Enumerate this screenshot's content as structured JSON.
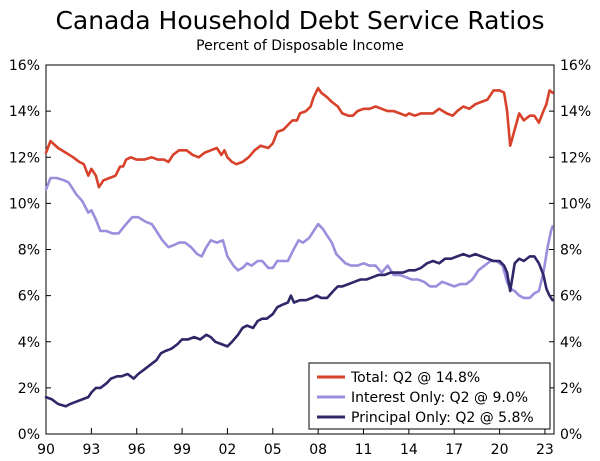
{
  "chart_data": {
    "type": "line",
    "title": "Canada Household Debt Service Ratios",
    "subtitle": "Percent of Disposable Income",
    "xlabel": "",
    "ylabel": "",
    "xlim": [
      1990,
      2023.6
    ],
    "ylim": [
      0,
      16
    ],
    "x_ticks": [
      1990,
      1993,
      1996,
      1999,
      2002,
      2005,
      2008,
      2011,
      2014,
      2017,
      2020,
      2023
    ],
    "x_tick_labels": [
      "90",
      "93",
      "96",
      "99",
      "02",
      "05",
      "08",
      "11",
      "14",
      "17",
      "20",
      "23"
    ],
    "y_ticks": [
      0,
      2,
      4,
      6,
      8,
      10,
      12,
      14,
      16
    ],
    "y_tick_labels": [
      "0%",
      "2%",
      "4%",
      "6%",
      "8%",
      "10%",
      "12%",
      "14%",
      "16%"
    ],
    "grid": false,
    "legend_position": "bottom-right",
    "series": [
      {
        "name": "Total: Q2 @ 14.8%",
        "color": "#d8412a",
        "points": [
          [
            1990.0,
            12.2
          ],
          [
            1990.3,
            12.7
          ],
          [
            1990.8,
            12.4
          ],
          [
            1991.3,
            12.2
          ],
          [
            1991.8,
            12.0
          ],
          [
            1992.2,
            11.8
          ],
          [
            1992.5,
            11.7
          ],
          [
            1992.8,
            11.2
          ],
          [
            1993.0,
            11.5
          ],
          [
            1993.3,
            11.2
          ],
          [
            1993.5,
            10.7
          ],
          [
            1993.8,
            11.0
          ],
          [
            1994.2,
            11.1
          ],
          [
            1994.6,
            11.2
          ],
          [
            1994.9,
            11.6
          ],
          [
            1995.1,
            11.6
          ],
          [
            1995.3,
            11.9
          ],
          [
            1995.6,
            12.0
          ],
          [
            1996.0,
            11.9
          ],
          [
            1996.5,
            11.9
          ],
          [
            1997.0,
            12.0
          ],
          [
            1997.4,
            11.9
          ],
          [
            1997.8,
            11.9
          ],
          [
            1998.1,
            11.8
          ],
          [
            1998.4,
            12.1
          ],
          [
            1998.8,
            12.3
          ],
          [
            1999.3,
            12.3
          ],
          [
            1999.7,
            12.1
          ],
          [
            2000.1,
            12.0
          ],
          [
            2000.5,
            12.2
          ],
          [
            2000.9,
            12.3
          ],
          [
            2001.3,
            12.4
          ],
          [
            2001.6,
            12.1
          ],
          [
            2001.8,
            12.3
          ],
          [
            2002.0,
            12.0
          ],
          [
            2002.3,
            11.8
          ],
          [
            2002.6,
            11.7
          ],
          [
            2003.0,
            11.8
          ],
          [
            2003.4,
            12.0
          ],
          [
            2003.8,
            12.3
          ],
          [
            2004.2,
            12.5
          ],
          [
            2004.7,
            12.4
          ],
          [
            2005.0,
            12.6
          ],
          [
            2005.3,
            13.1
          ],
          [
            2005.7,
            13.2
          ],
          [
            2006.0,
            13.4
          ],
          [
            2006.3,
            13.6
          ],
          [
            2006.6,
            13.6
          ],
          [
            2006.8,
            13.9
          ],
          [
            2007.2,
            14.0
          ],
          [
            2007.5,
            14.2
          ],
          [
            2007.7,
            14.6
          ],
          [
            2008.0,
            15.0
          ],
          [
            2008.2,
            14.8
          ],
          [
            2008.6,
            14.6
          ],
          [
            2008.9,
            14.4
          ],
          [
            2009.3,
            14.2
          ],
          [
            2009.6,
            13.9
          ],
          [
            2010.0,
            13.8
          ],
          [
            2010.3,
            13.8
          ],
          [
            2010.6,
            14.0
          ],
          [
            2011.0,
            14.1
          ],
          [
            2011.4,
            14.1
          ],
          [
            2011.8,
            14.2
          ],
          [
            2012.2,
            14.1
          ],
          [
            2012.6,
            14.0
          ],
          [
            2013.0,
            14.0
          ],
          [
            2013.4,
            13.9
          ],
          [
            2013.8,
            13.8
          ],
          [
            2014.0,
            13.9
          ],
          [
            2014.4,
            13.8
          ],
          [
            2014.8,
            13.9
          ],
          [
            2015.2,
            13.9
          ],
          [
            2015.6,
            13.9
          ],
          [
            2016.0,
            14.1
          ],
          [
            2016.5,
            13.9
          ],
          [
            2016.9,
            13.8
          ],
          [
            2017.2,
            14.0
          ],
          [
            2017.6,
            14.2
          ],
          [
            2018.0,
            14.1
          ],
          [
            2018.4,
            14.3
          ],
          [
            2018.8,
            14.4
          ],
          [
            2019.2,
            14.5
          ],
          [
            2019.6,
            14.9
          ],
          [
            2020.0,
            14.9
          ],
          [
            2020.3,
            14.8
          ],
          [
            2020.5,
            14.0
          ],
          [
            2020.7,
            12.5
          ],
          [
            2021.0,
            13.2
          ],
          [
            2021.3,
            13.9
          ],
          [
            2021.6,
            13.6
          ],
          [
            2022.0,
            13.8
          ],
          [
            2022.3,
            13.8
          ],
          [
            2022.6,
            13.5
          ],
          [
            2022.9,
            14.0
          ],
          [
            2023.1,
            14.3
          ],
          [
            2023.3,
            14.9
          ],
          [
            2023.5,
            14.8
          ]
        ]
      },
      {
        "name": "Interest Only: Q2 @ 9.0%",
        "color": "#9b8edc",
        "points": [
          [
            1990.0,
            10.6
          ],
          [
            1990.3,
            11.1
          ],
          [
            1990.7,
            11.1
          ],
          [
            1991.2,
            11.0
          ],
          [
            1991.5,
            10.9
          ],
          [
            1992.0,
            10.4
          ],
          [
            1992.4,
            10.1
          ],
          [
            1992.8,
            9.6
          ],
          [
            1993.0,
            9.7
          ],
          [
            1993.3,
            9.3
          ],
          [
            1993.6,
            8.8
          ],
          [
            1994.0,
            8.8
          ],
          [
            1994.4,
            8.7
          ],
          [
            1994.8,
            8.7
          ],
          [
            1995.3,
            9.1
          ],
          [
            1995.7,
            9.4
          ],
          [
            1996.1,
            9.4
          ],
          [
            1996.6,
            9.2
          ],
          [
            1997.0,
            9.1
          ],
          [
            1997.3,
            8.8
          ],
          [
            1997.7,
            8.4
          ],
          [
            1998.1,
            8.1
          ],
          [
            1998.5,
            8.2
          ],
          [
            1998.8,
            8.3
          ],
          [
            1999.2,
            8.3
          ],
          [
            1999.6,
            8.1
          ],
          [
            2000.0,
            7.8
          ],
          [
            2000.3,
            7.7
          ],
          [
            2000.6,
            8.1
          ],
          [
            2000.9,
            8.4
          ],
          [
            2001.3,
            8.3
          ],
          [
            2001.7,
            8.4
          ],
          [
            2002.0,
            7.7
          ],
          [
            2002.4,
            7.3
          ],
          [
            2002.7,
            7.1
          ],
          [
            2003.0,
            7.2
          ],
          [
            2003.3,
            7.4
          ],
          [
            2003.6,
            7.3
          ],
          [
            2004.0,
            7.5
          ],
          [
            2004.3,
            7.5
          ],
          [
            2004.7,
            7.2
          ],
          [
            2005.0,
            7.2
          ],
          [
            2005.3,
            7.5
          ],
          [
            2005.6,
            7.5
          ],
          [
            2006.0,
            7.5
          ],
          [
            2006.3,
            7.9
          ],
          [
            2006.7,
            8.4
          ],
          [
            2007.0,
            8.3
          ],
          [
            2007.4,
            8.5
          ],
          [
            2007.8,
            8.9
          ],
          [
            2008.0,
            9.1
          ],
          [
            2008.3,
            8.9
          ],
          [
            2008.6,
            8.6
          ],
          [
            2008.9,
            8.3
          ],
          [
            2009.2,
            7.8
          ],
          [
            2009.5,
            7.6
          ],
          [
            2009.8,
            7.4
          ],
          [
            2010.2,
            7.3
          ],
          [
            2010.6,
            7.3
          ],
          [
            2011.0,
            7.4
          ],
          [
            2011.4,
            7.3
          ],
          [
            2011.8,
            7.3
          ],
          [
            2012.2,
            7.0
          ],
          [
            2012.6,
            7.3
          ],
          [
            2013.0,
            6.9
          ],
          [
            2013.4,
            6.9
          ],
          [
            2013.8,
            6.8
          ],
          [
            2014.2,
            6.7
          ],
          [
            2014.6,
            6.7
          ],
          [
            2015.0,
            6.6
          ],
          [
            2015.4,
            6.4
          ],
          [
            2015.8,
            6.4
          ],
          [
            2016.2,
            6.6
          ],
          [
            2016.6,
            6.5
          ],
          [
            2017.0,
            6.4
          ],
          [
            2017.4,
            6.5
          ],
          [
            2017.8,
            6.5
          ],
          [
            2018.2,
            6.7
          ],
          [
            2018.6,
            7.1
          ],
          [
            2019.0,
            7.3
          ],
          [
            2019.4,
            7.5
          ],
          [
            2019.8,
            7.5
          ],
          [
            2020.2,
            7.3
          ],
          [
            2020.5,
            6.6
          ],
          [
            2020.7,
            6.3
          ],
          [
            2021.0,
            6.2
          ],
          [
            2021.3,
            6.0
          ],
          [
            2021.6,
            5.9
          ],
          [
            2022.0,
            5.9
          ],
          [
            2022.3,
            6.1
          ],
          [
            2022.6,
            6.2
          ],
          [
            2022.9,
            7.0
          ],
          [
            2023.2,
            8.2
          ],
          [
            2023.4,
            8.8
          ],
          [
            2023.5,
            9.0
          ]
        ]
      },
      {
        "name": "Principal Only: Q2 @ 5.8%",
        "color": "#2e2768",
        "points": [
          [
            1990.0,
            1.6
          ],
          [
            1990.4,
            1.5
          ],
          [
            1990.8,
            1.3
          ],
          [
            1991.3,
            1.2
          ],
          [
            1991.6,
            1.3
          ],
          [
            1992.0,
            1.4
          ],
          [
            1992.4,
            1.5
          ],
          [
            1992.8,
            1.6
          ],
          [
            1993.0,
            1.8
          ],
          [
            1993.3,
            2.0
          ],
          [
            1993.6,
            2.0
          ],
          [
            1994.0,
            2.2
          ],
          [
            1994.3,
            2.4
          ],
          [
            1994.7,
            2.5
          ],
          [
            1995.0,
            2.5
          ],
          [
            1995.4,
            2.6
          ],
          [
            1995.8,
            2.4
          ],
          [
            1996.1,
            2.6
          ],
          [
            1996.5,
            2.8
          ],
          [
            1996.9,
            3.0
          ],
          [
            1997.3,
            3.2
          ],
          [
            1997.6,
            3.5
          ],
          [
            1997.9,
            3.6
          ],
          [
            1998.3,
            3.7
          ],
          [
            1998.7,
            3.9
          ],
          [
            1999.0,
            4.1
          ],
          [
            1999.4,
            4.1
          ],
          [
            1999.8,
            4.2
          ],
          [
            2000.2,
            4.1
          ],
          [
            2000.6,
            4.3
          ],
          [
            2000.9,
            4.2
          ],
          [
            2001.2,
            4.0
          ],
          [
            2001.6,
            3.9
          ],
          [
            2002.0,
            3.8
          ],
          [
            2002.3,
            4.0
          ],
          [
            2002.7,
            4.3
          ],
          [
            2003.0,
            4.6
          ],
          [
            2003.3,
            4.7
          ],
          [
            2003.7,
            4.6
          ],
          [
            2004.0,
            4.9
          ],
          [
            2004.3,
            5.0
          ],
          [
            2004.6,
            5.0
          ],
          [
            2005.0,
            5.2
          ],
          [
            2005.3,
            5.5
          ],
          [
            2005.6,
            5.6
          ],
          [
            2006.0,
            5.7
          ],
          [
            2006.2,
            6.0
          ],
          [
            2006.4,
            5.7
          ],
          [
            2006.8,
            5.8
          ],
          [
            2007.2,
            5.8
          ],
          [
            2007.6,
            5.9
          ],
          [
            2007.9,
            6.0
          ],
          [
            2008.2,
            5.9
          ],
          [
            2008.6,
            5.9
          ],
          [
            2009.0,
            6.2
          ],
          [
            2009.3,
            6.4
          ],
          [
            2009.6,
            6.4
          ],
          [
            2010.0,
            6.5
          ],
          [
            2010.4,
            6.6
          ],
          [
            2010.8,
            6.7
          ],
          [
            2011.2,
            6.7
          ],
          [
            2011.6,
            6.8
          ],
          [
            2012.0,
            6.9
          ],
          [
            2012.4,
            6.9
          ],
          [
            2012.8,
            7.0
          ],
          [
            2013.2,
            7.0
          ],
          [
            2013.6,
            7.0
          ],
          [
            2014.0,
            7.1
          ],
          [
            2014.4,
            7.1
          ],
          [
            2014.8,
            7.2
          ],
          [
            2015.2,
            7.4
          ],
          [
            2015.6,
            7.5
          ],
          [
            2016.0,
            7.4
          ],
          [
            2016.4,
            7.6
          ],
          [
            2016.8,
            7.6
          ],
          [
            2017.2,
            7.7
          ],
          [
            2017.6,
            7.8
          ],
          [
            2018.0,
            7.7
          ],
          [
            2018.4,
            7.8
          ],
          [
            2018.8,
            7.7
          ],
          [
            2019.2,
            7.6
          ],
          [
            2019.6,
            7.5
          ],
          [
            2020.0,
            7.5
          ],
          [
            2020.3,
            7.3
          ],
          [
            2020.5,
            7.0
          ],
          [
            2020.7,
            6.2
          ],
          [
            2021.0,
            7.4
          ],
          [
            2021.3,
            7.6
          ],
          [
            2021.6,
            7.5
          ],
          [
            2022.0,
            7.7
          ],
          [
            2022.3,
            7.7
          ],
          [
            2022.6,
            7.4
          ],
          [
            2022.9,
            6.9
          ],
          [
            2023.1,
            6.3
          ],
          [
            2023.3,
            6.0
          ],
          [
            2023.5,
            5.8
          ]
        ]
      }
    ]
  }
}
